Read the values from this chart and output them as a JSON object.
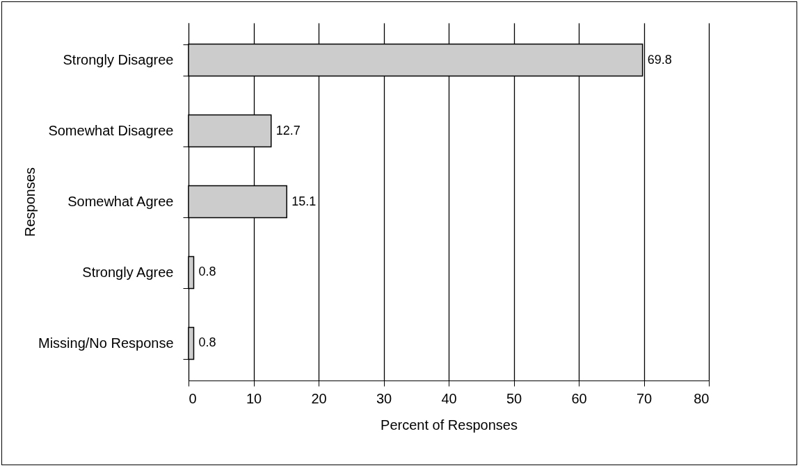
{
  "chart_data": {
    "type": "bar",
    "orientation": "horizontal",
    "xlabel": "Percent of Responses",
    "ylabel": "Responses",
    "categories": [
      "Strongly Disagree",
      "Somewhat Disagree",
      "Somewhat Agree",
      "Strongly Agree",
      "Missing/No Response"
    ],
    "values": [
      69.8,
      12.7,
      15.1,
      0.8,
      0.8
    ],
    "color": "#cccccc",
    "xlim": [
      0,
      80
    ],
    "xticks": [
      0,
      10,
      20,
      30,
      40,
      50,
      60,
      70,
      80
    ],
    "grid": "x",
    "data_labels": true
  }
}
